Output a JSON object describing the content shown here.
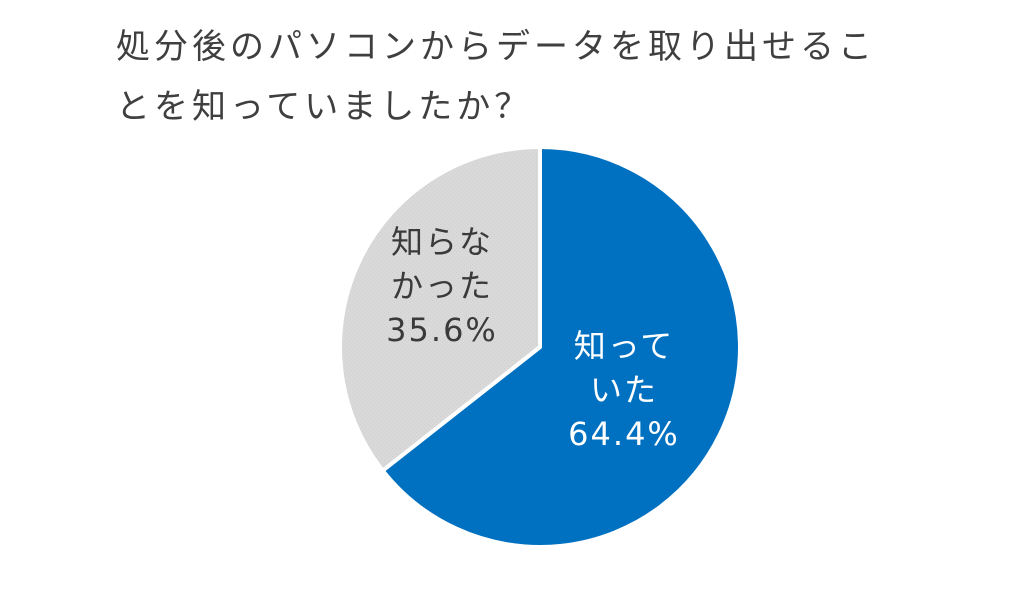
{
  "chart_data": {
    "type": "pie",
    "title_lines": [
      "処分後のパソコンからデータを取り出せるこ",
      "とを知っていましたか？"
    ],
    "start_angle_deg": 0,
    "direction": "clockwise",
    "slices": [
      {
        "label_lines": [
          "知って",
          "いた"
        ],
        "value": 64.4,
        "value_label": "64.4%",
        "color": "#0070c0",
        "label_color": "#ffffff"
      },
      {
        "label_lines": [
          "知らな",
          "かった"
        ],
        "value": 35.6,
        "value_label": "35.6%",
        "color": "#d9d9d9",
        "label_color": "#3a3a3a"
      }
    ]
  }
}
